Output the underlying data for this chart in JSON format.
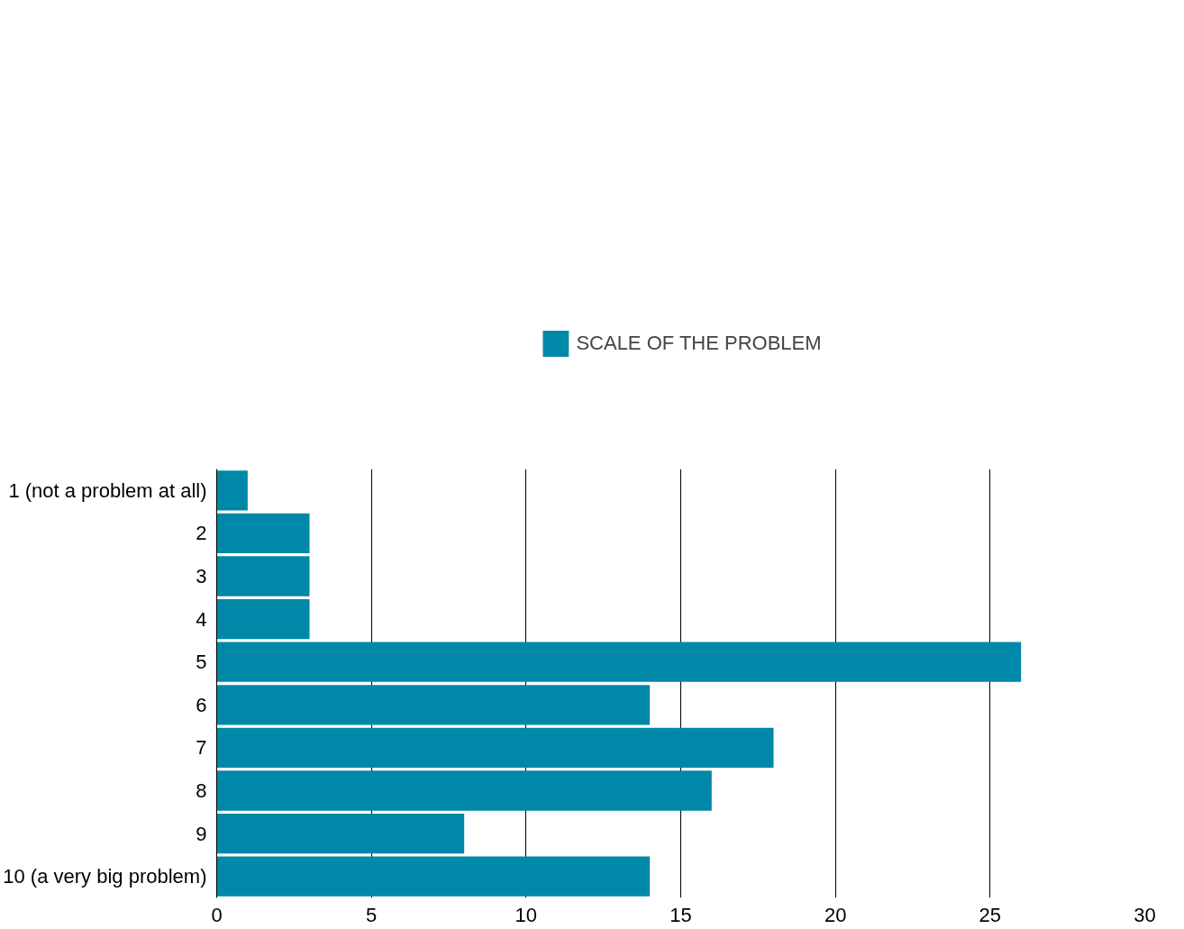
{
  "chart_data": {
    "type": "bar",
    "orientation": "horizontal",
    "categories": [
      "1 (not a problem at all)",
      "2",
      "3",
      "4",
      "5",
      "6",
      "7",
      "8",
      "9",
      "10 (a very big problem)"
    ],
    "series": [
      {
        "name": "SCALE OF THE PROBLEM",
        "color": "#0088a8",
        "values": [
          1,
          3,
          3,
          3,
          26,
          14,
          18,
          16,
          8,
          14
        ]
      }
    ],
    "xlim": [
      0,
      30
    ],
    "xticks": [
      0,
      5,
      10,
      15,
      20,
      25,
      30
    ],
    "grid": "x",
    "legend": "top"
  }
}
